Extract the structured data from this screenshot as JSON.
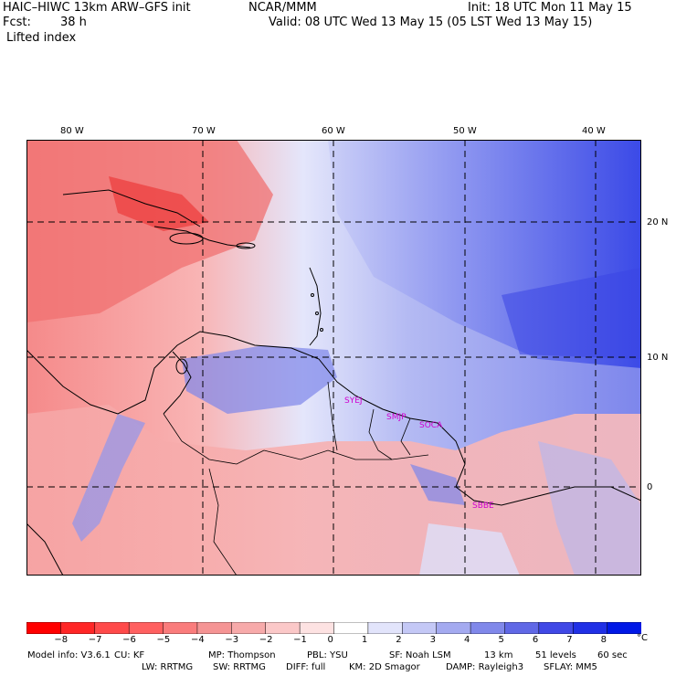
{
  "header": {
    "title": "HAIC–HIWC 13km ARW–GFS init",
    "org": "NCAR/MMM",
    "init": "Init: 18 UTC Mon 11 May 15",
    "fcst_label": "Fcst:",
    "fcst_value": "38 h",
    "valid": "Valid: 08 UTC Wed 13 May 15 (05 LST Wed 13 May 15)",
    "field": "Lifted index"
  },
  "map": {
    "lon_labels": [
      "80 W",
      "70 W",
      "60 W",
      "50 W",
      "40 W"
    ],
    "lat_labels": [
      "20 N",
      "10 N",
      "0"
    ],
    "stations": [
      "SYEJ",
      "SMJP",
      "SOCA",
      "SBBE"
    ]
  },
  "legend": {
    "ticks": [
      "−8",
      "−7",
      "−6",
      "−5",
      "−4",
      "−3",
      "−2",
      "−1",
      "0",
      "1",
      "2",
      "3",
      "4",
      "5",
      "6",
      "7",
      "8"
    ],
    "unit": "°C",
    "colors": [
      "#ff0000",
      "#ff2626",
      "#ff4a4a",
      "#ff6060",
      "#fa7c7c",
      "#f59494",
      "#f7aaaa",
      "#fbc8c8",
      "#fde2e2",
      "#ffffff",
      "#e2e4fb",
      "#c4c8f6",
      "#a4aaf0",
      "#8088ea",
      "#6068e6",
      "#4048e6",
      "#2030e6",
      "#0018e6"
    ]
  },
  "footer": {
    "line1": [
      {
        "k": "Model info:",
        "v": "V3.6.1"
      },
      {
        "k": "CU:",
        "v": "KF"
      },
      {
        "k": "MP:",
        "v": "Thompson"
      },
      {
        "k": "PBL:",
        "v": "YSU"
      },
      {
        "k": "SF:",
        "v": "Noah LSM"
      },
      {
        "k": "",
        "v": "13 km"
      },
      {
        "k": "",
        "v": "51 levels"
      },
      {
        "k": "",
        "v": "60 sec"
      }
    ],
    "line2": [
      {
        "k": "LW:",
        "v": "RRTMG"
      },
      {
        "k": "SW:",
        "v": "RRTMG"
      },
      {
        "k": "DIFF:",
        "v": "full"
      },
      {
        "k": "KM:",
        "v": "2D Smagor"
      },
      {
        "k": "DAMP:",
        "v": "Rayleigh3"
      },
      {
        "k": "SFLAY:",
        "v": "MM5"
      }
    ]
  }
}
